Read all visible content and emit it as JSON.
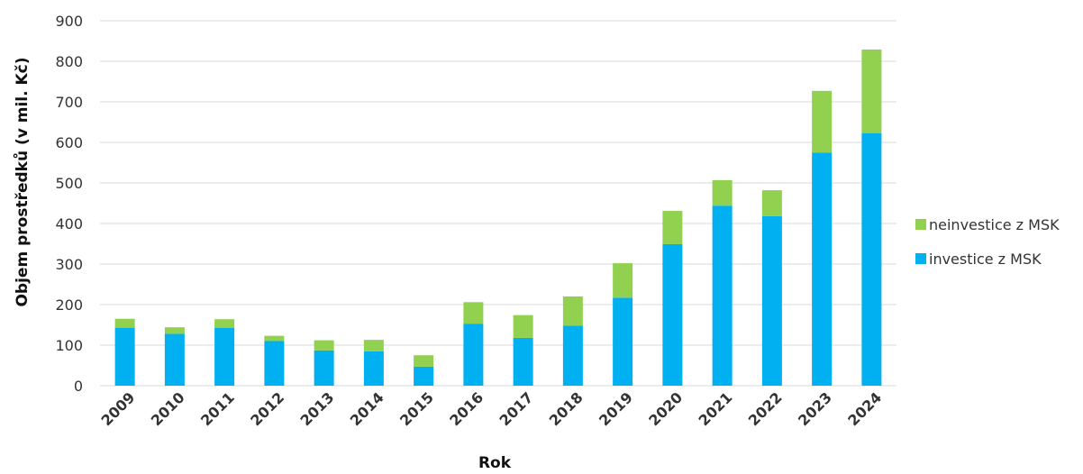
{
  "chart_data": {
    "type": "bar",
    "stacked": true,
    "categories": [
      "2009",
      "2010",
      "2011",
      "2012",
      "2013",
      "2014",
      "2015",
      "2016",
      "2017",
      "2018",
      "2019",
      "2020",
      "2021",
      "2022",
      "2023",
      "2024"
    ],
    "series": [
      {
        "name": "investice z MSK",
        "color": "#00b0f0",
        "values": [
          143,
          128,
          143,
          110,
          87,
          85,
          47,
          153,
          118,
          148,
          217,
          349,
          444,
          418,
          575,
          623
        ]
      },
      {
        "name": "neinvestice z MSK",
        "color": "#92d050",
        "values": [
          22,
          16,
          21,
          13,
          25,
          28,
          28,
          53,
          56,
          72,
          85,
          82,
          63,
          64,
          152,
          206
        ]
      }
    ],
    "xlabel": "Rok",
    "ylabel": "Objem prostředků (v mil. Kč)",
    "ylim": [
      0,
      900
    ],
    "yticks": [
      0,
      100,
      200,
      300,
      400,
      500,
      600,
      700,
      800,
      900
    ],
    "grid": true,
    "legend_position": "right"
  }
}
